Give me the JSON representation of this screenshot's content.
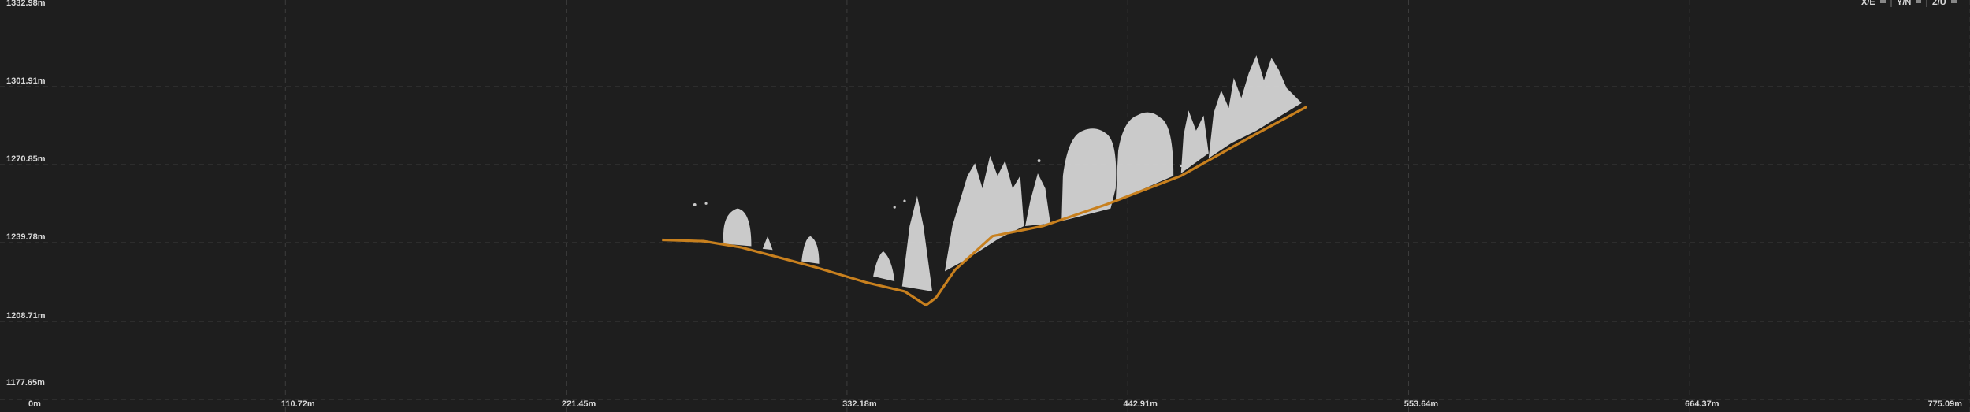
{
  "profile_view": {
    "y_axis_labels": [
      "1332.98m",
      "1301.91m",
      "1270.85m",
      "1239.78m",
      "1208.71m",
      "1177.65m"
    ],
    "x_axis_labels": [
      "0m",
      "110.72m",
      "221.45m",
      "332.18m",
      "442.91m",
      "553.64m",
      "664.37m",
      "775.09m"
    ],
    "axis_toggles": [
      "X/E",
      "Y/N",
      "Z/U"
    ]
  }
}
